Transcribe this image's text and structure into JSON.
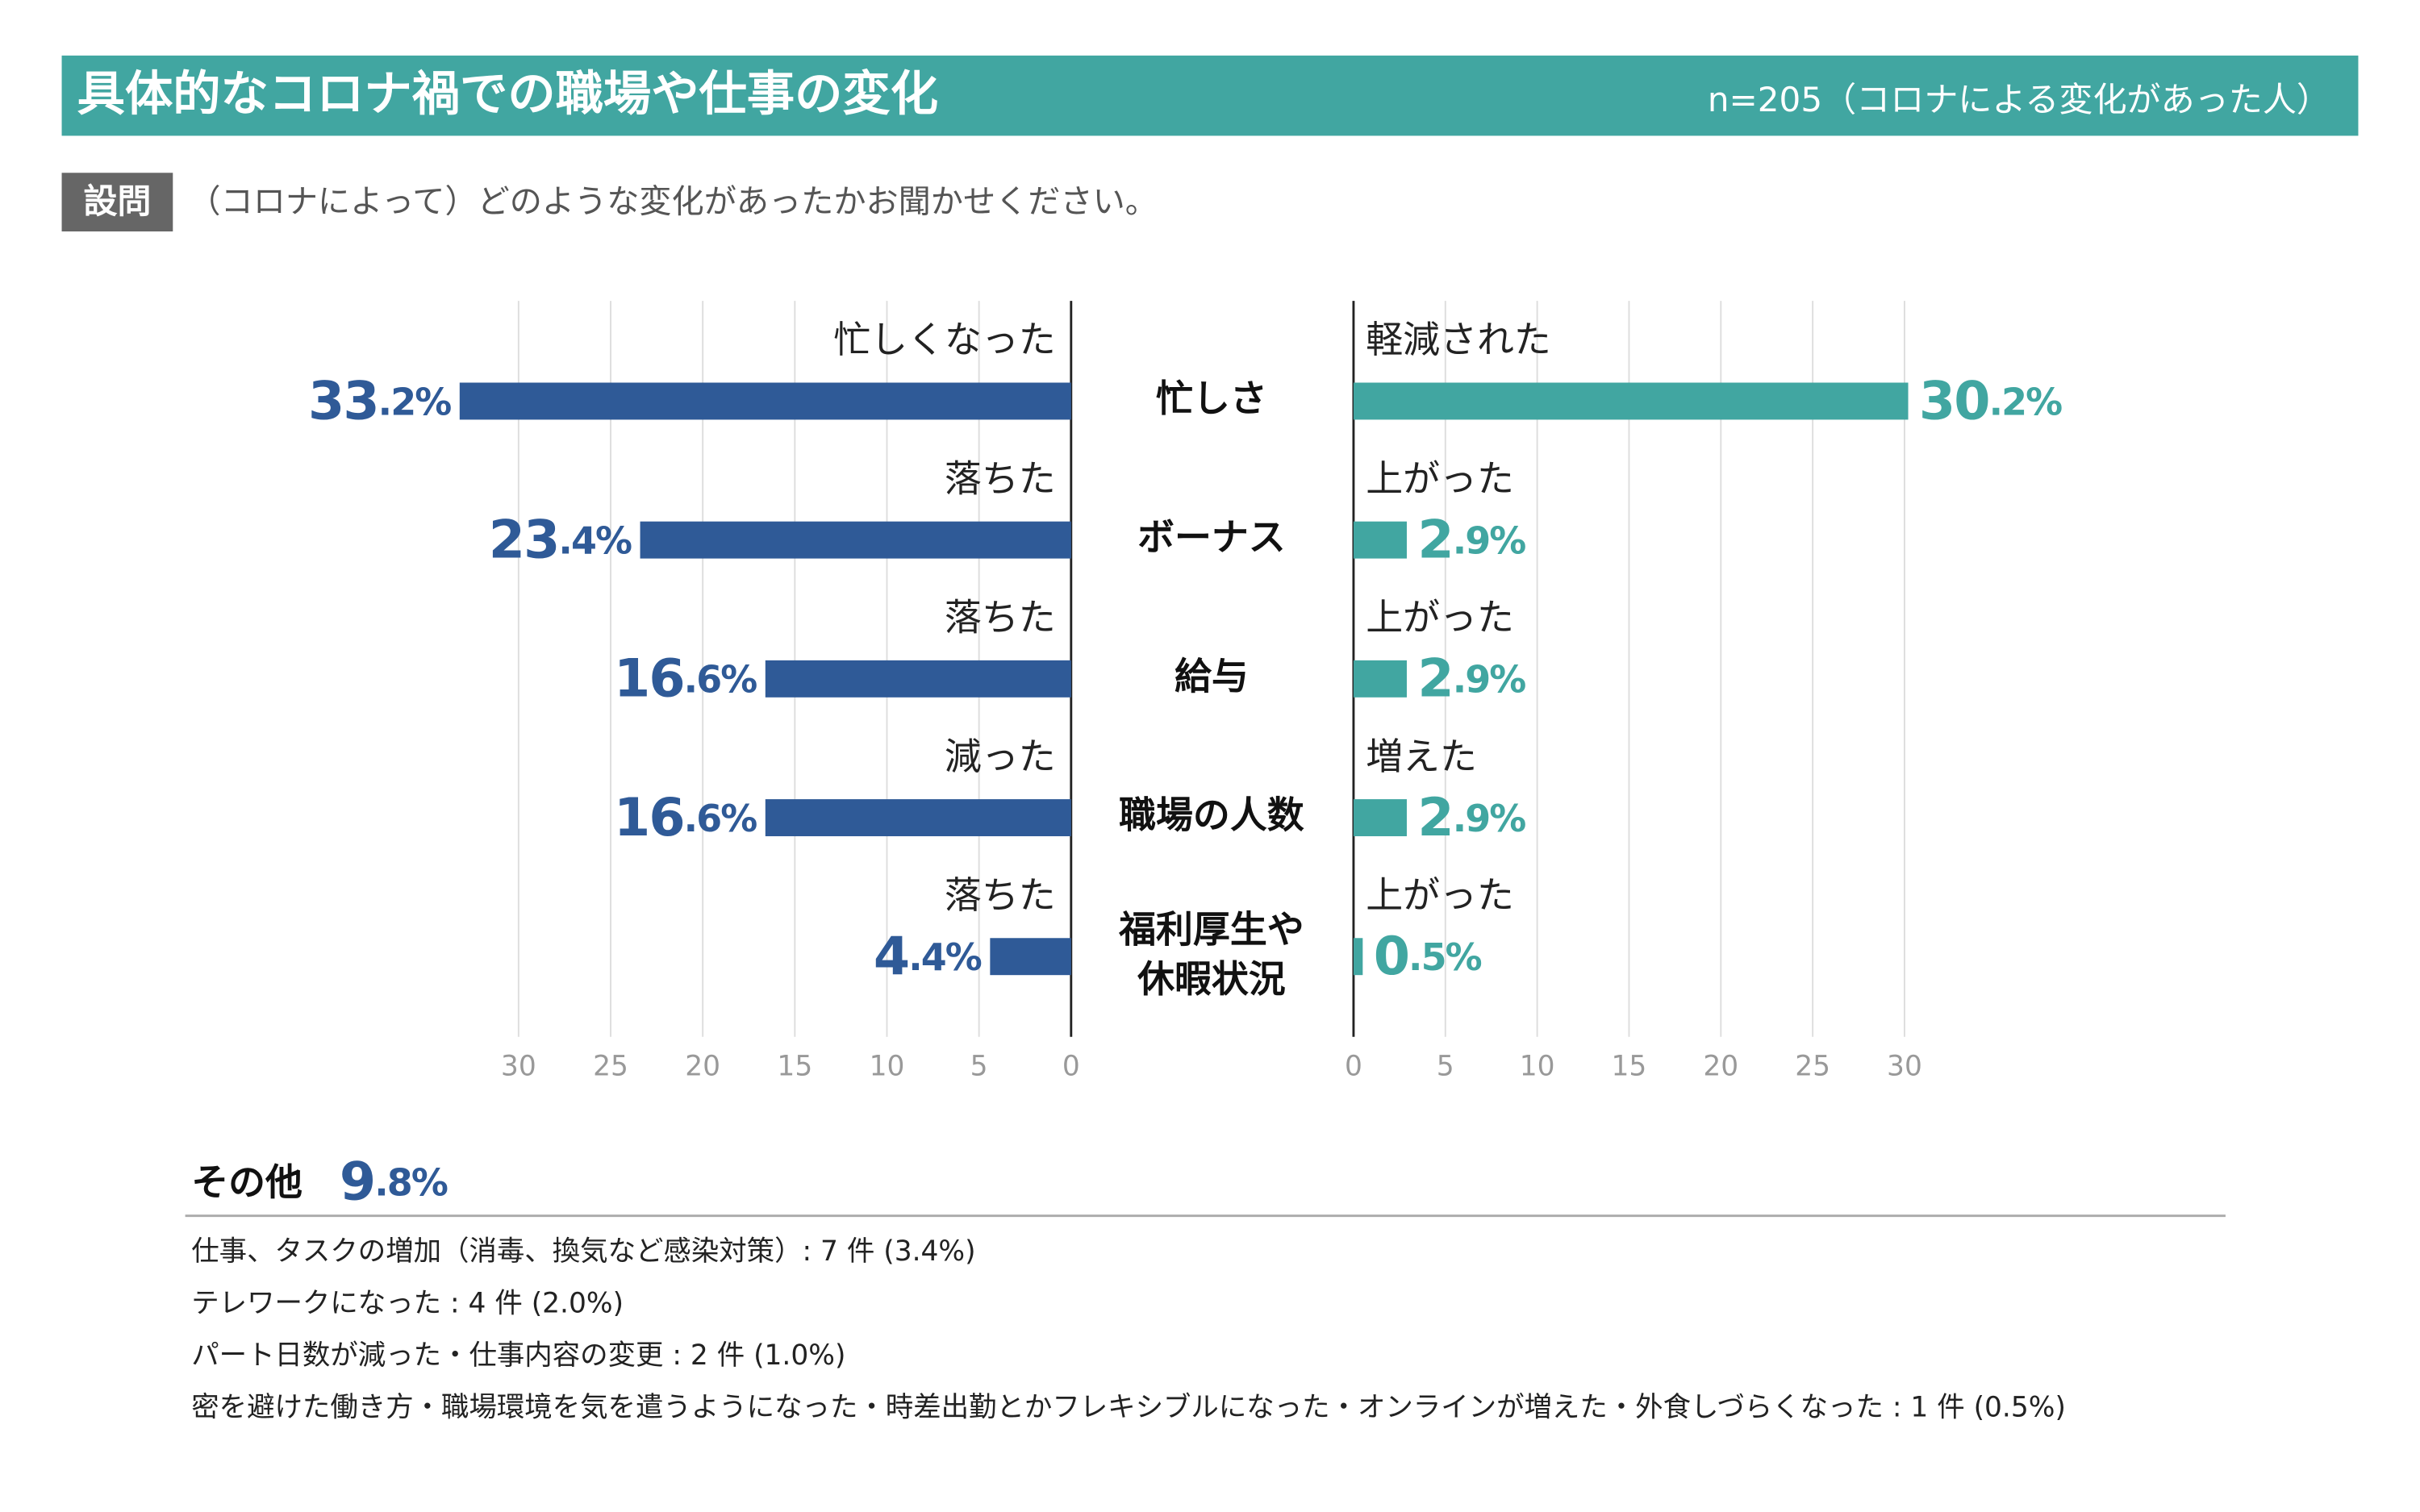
{
  "header": {
    "title": "具体的なコロナ禍での職場や仕事の変化",
    "sample": "n=205（コロナによる変化があった人）"
  },
  "question": {
    "tag": "設問",
    "text": "（コロナによって）どのような変化があったかお聞かせください。"
  },
  "chart_data": {
    "type": "butterfly",
    "categories": [
      "忙しさ",
      "ボーナス",
      "給与",
      "職場の人数",
      "福利厚生や\n休暇状況"
    ],
    "series": [
      {
        "side": "left",
        "color": "#2f5a97",
        "labels": [
          "忙しくなった",
          "落ちた",
          "落ちた",
          "減った",
          "落ちた"
        ],
        "values": [
          33.2,
          23.4,
          16.6,
          16.6,
          4.4
        ],
        "value_labels": [
          "33.2%",
          "23.4%",
          "16.6%",
          "16.6%",
          "4.4%"
        ]
      },
      {
        "side": "right",
        "color": "#41a6a1",
        "labels": [
          "軽減された",
          "上がった",
          "上がった",
          "増えた",
          "上がった"
        ],
        "values": [
          30.2,
          2.9,
          2.9,
          2.9,
          0.5
        ],
        "value_labels": [
          "30.2%",
          "2.9%",
          "2.9%",
          "2.9%",
          "0.5%"
        ]
      }
    ],
    "xlim": [
      0,
      30
    ],
    "xticks": [
      0,
      5,
      10,
      15,
      20,
      25,
      30
    ],
    "grid": true
  },
  "others": {
    "title": "その他",
    "value": 9.8,
    "value_label": "9.8%",
    "items": [
      "仕事、タスクの増加（消毒、換気など感染対策）: 7 件 (3.4%)",
      "テレワークになった : 4 件 (2.0%)",
      "パート日数が減った・仕事内容の変更 : 2 件 (1.0%)",
      "密を避けた働き方・職場環境を気を遣うようになった・時差出勤とかフレキシブルになった・オンラインが増えた・外食しづらくなった : 1 件 (0.5%)"
    ]
  }
}
